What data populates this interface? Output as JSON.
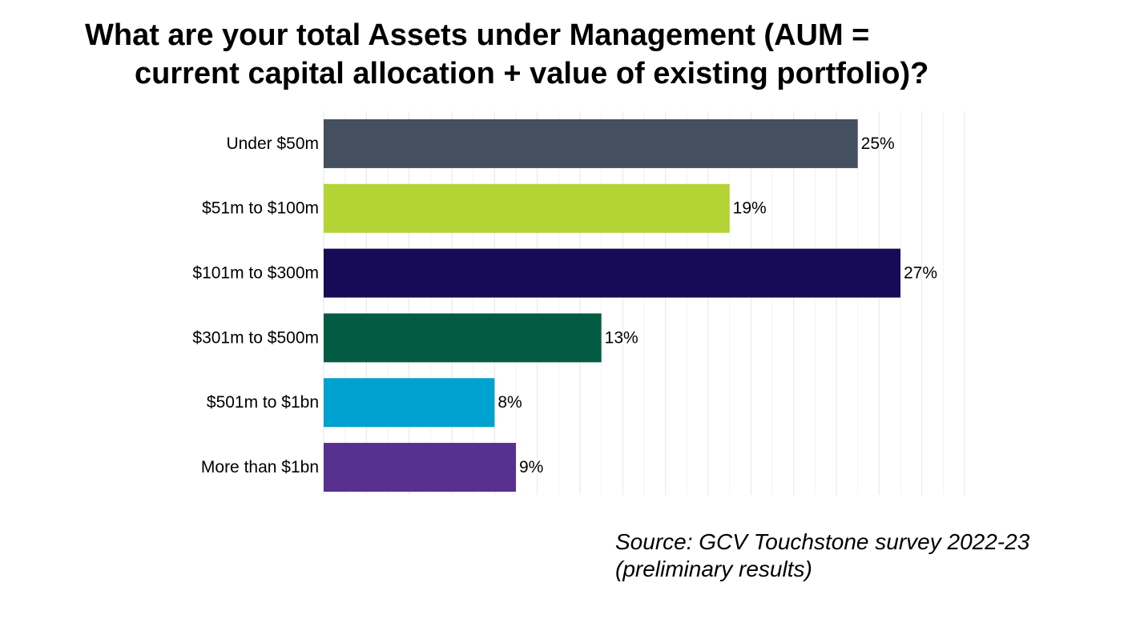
{
  "chart_data": {
    "type": "bar",
    "orientation": "horizontal",
    "title_lines": [
      "What are your total Assets under Management (AUM =",
      "current capital allocation + value of existing portfolio)?"
    ],
    "categories": [
      "Under $50m",
      "$51m to $100m",
      "$101m to $300m",
      "$301m to $500m",
      "$501m to $1bn",
      "More than $1bn"
    ],
    "values": [
      25,
      19,
      27,
      13,
      8,
      9
    ],
    "value_labels": [
      "25%",
      "19%",
      "27%",
      "13%",
      "8%",
      "9%"
    ],
    "bar_colors": [
      "#444f5f",
      "#b4d334",
      "#170b57",
      "#035b43",
      "#00a2cf",
      "#573090"
    ],
    "xlim": [
      0,
      30
    ],
    "grid": true,
    "legend": "none",
    "source_lines": [
      "Source: GCV Touchstone survey 2022-23",
      "(preliminary results)"
    ]
  }
}
